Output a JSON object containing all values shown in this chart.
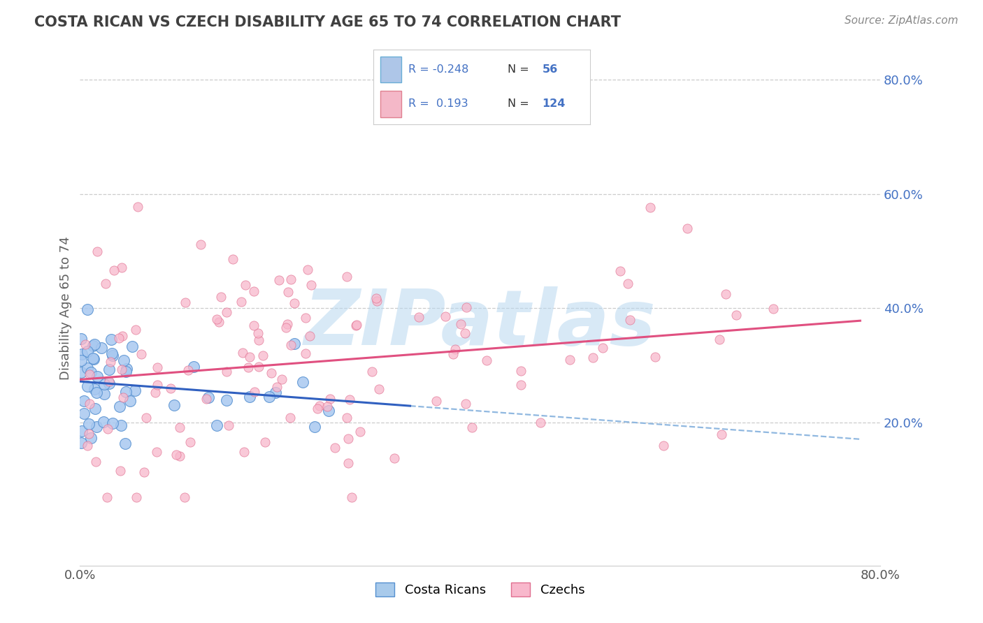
{
  "title": "COSTA RICAN VS CZECH DISABILITY AGE 65 TO 74 CORRELATION CHART",
  "source": "Source: ZipAtlas.com",
  "ylabel": "Disability Age 65 to 74",
  "xlim": [
    0.0,
    0.8
  ],
  "ylim": [
    -0.05,
    0.85
  ],
  "cr_r": -0.248,
  "cr_n": 56,
  "czech_r": 0.193,
  "czech_n": 124,
  "cr_scatter_color": "#a8c8f0",
  "cr_edge_color": "#5590d0",
  "czech_scatter_color": "#f8b8cc",
  "czech_edge_color": "#e07090",
  "cr_line_color": "#3060c0",
  "czech_line_color": "#e05080",
  "dash_color": "#90b8e0",
  "watermark": "ZIPatlas",
  "background_color": "#ffffff",
  "grid_color": "#cccccc",
  "title_color": "#404040",
  "axis_label_color": "#606060",
  "tick_color": "#4472c4",
  "source_color": "#888888",
  "legend_border_color": "#cccccc",
  "legend_bg": "#ffffff",
  "legend_r_color": "#4472c4",
  "legend_n_color": "#333333",
  "legend_val_color": "#4472c4"
}
